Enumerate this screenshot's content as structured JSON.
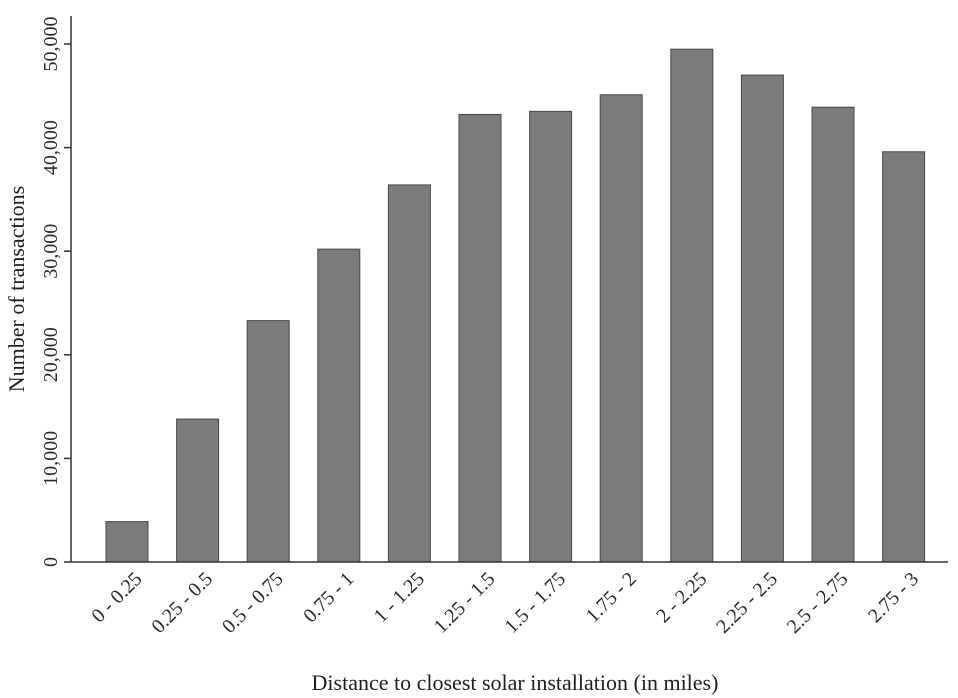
{
  "chart_data": {
    "type": "bar",
    "xlabel": "Distance to closest solar installation (in miles)",
    "ylabel": "Number of transactions",
    "categories": [
      "0 - 0.25",
      "0.25 - 0.5",
      "0.5 - 0.75",
      "0.75 - 1",
      "1 - 1.25",
      "1.25 - 1.5",
      "1.5 - 1.75",
      "1.75 - 2",
      "2 - 2.25",
      "2.25 - 2.5",
      "2.5 - 2.75",
      "2.75 - 3"
    ],
    "values": [
      3900,
      13800,
      23300,
      30200,
      36400,
      43200,
      43500,
      45100,
      49500,
      47000,
      43900,
      39600
    ],
    "ylim": [
      0,
      52000
    ],
    "yticks": [
      0,
      10000,
      20000,
      30000,
      40000,
      50000
    ],
    "ytick_labels": [
      "0",
      "10,000",
      "20,000",
      "30,000",
      "40,000",
      "50,000"
    ],
    "grid": false,
    "bar_color": "#7b7b7b"
  }
}
